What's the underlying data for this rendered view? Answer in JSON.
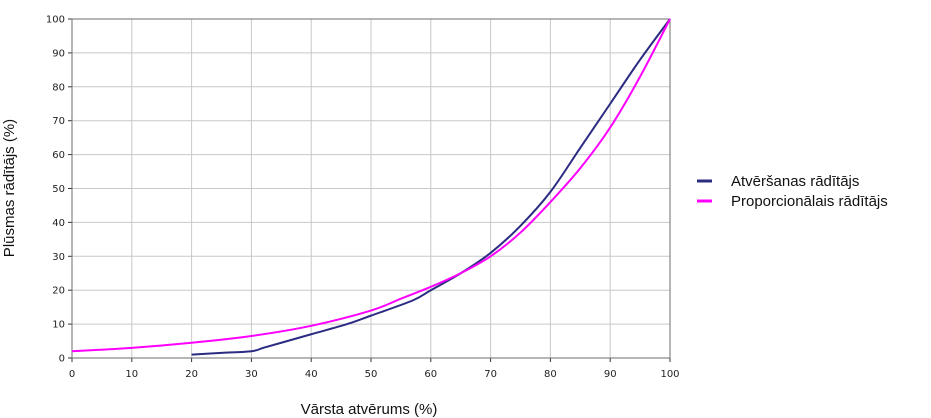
{
  "chart_data": {
    "type": "line",
    "title": "",
    "xlabel": "Vārsta atvērums (%)",
    "ylabel": "Plūsmas rādītājs (%)",
    "xlim": [
      0,
      100
    ],
    "ylim": [
      0,
      100
    ],
    "x_ticks": [
      "0",
      "10",
      "20",
      "30",
      "40",
      "50",
      "60",
      "70",
      "80",
      "90",
      "100"
    ],
    "y_ticks": [
      "0",
      "10",
      "20",
      "30",
      "40",
      "50",
      "60",
      "70",
      "80",
      "90",
      "100"
    ],
    "grid": true,
    "legend_position": "right",
    "series": [
      {
        "name": "Atvēršanas rādītājs",
        "color": "#2b2b82",
        "x": [
          20,
          25,
          30,
          32,
          35,
          40,
          46,
          50,
          57,
          60,
          65,
          70,
          75,
          80,
          85,
          90,
          95,
          100
        ],
        "y": [
          1,
          1.5,
          2,
          3,
          4.5,
          7,
          10,
          12.5,
          17,
          20,
          25,
          31,
          39,
          49,
          62,
          75,
          88,
          100
        ]
      },
      {
        "name": "Proporcionālais rādītājs",
        "color": "#ff00ff",
        "x": [
          0,
          10,
          20,
          30,
          40,
          50,
          55,
          60,
          65,
          70,
          75,
          80,
          85,
          90,
          95,
          100
        ],
        "y": [
          2,
          3,
          4.5,
          6.5,
          9.5,
          14,
          17.5,
          21,
          25,
          30,
          37,
          46,
          56,
          68,
          83,
          100
        ]
      }
    ]
  }
}
